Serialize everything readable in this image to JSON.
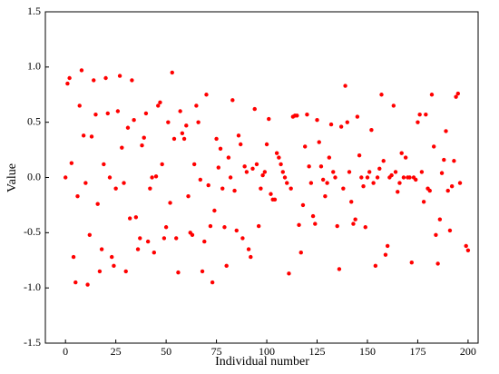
{
  "chart_data": {
    "type": "scatter",
    "x_label": "Individual number",
    "y_label": "Value",
    "color": "#ff0000",
    "xlim": [
      -10,
      205
    ],
    "ylim": [
      -1.5,
      1.5
    ],
    "xticks": [
      0,
      25,
      50,
      75,
      100,
      125,
      150,
      175,
      200
    ],
    "yticks": [
      {
        "value": -1.5,
        "label": "-1.5"
      },
      {
        "value": -1.0,
        "label": "-1.0"
      },
      {
        "value": -0.5,
        "label": "-0.5"
      },
      {
        "value": 0,
        "label": "0.0"
      },
      {
        "value": 0.5,
        "label": "0.5"
      },
      {
        "value": 1.0,
        "label": "1.0"
      },
      {
        "value": 1.5,
        "label": "1.5"
      }
    ],
    "x": [
      0,
      1,
      2,
      3,
      4,
      5,
      6,
      7,
      8,
      9,
      10,
      11,
      12,
      13,
      14,
      15,
      16,
      17,
      18,
      19,
      20,
      21,
      22,
      23,
      24,
      25,
      26,
      27,
      28,
      29,
      30,
      31,
      32,
      33,
      34,
      35,
      36,
      37,
      38,
      39,
      40,
      41,
      42,
      43,
      44,
      45,
      46,
      47,
      48,
      49,
      50,
      51,
      52,
      53,
      54,
      55,
      56,
      57,
      58,
      59,
      60,
      61,
      62,
      63,
      64,
      65,
      66,
      67,
      68,
      69,
      70,
      71,
      72,
      73,
      74,
      75,
      76,
      77,
      78,
      79,
      80,
      81,
      82,
      83,
      84,
      85,
      86,
      87,
      88,
      89,
      90,
      91,
      92,
      93,
      94,
      95,
      96,
      97,
      98,
      99,
      100,
      101,
      102,
      103,
      104,
      105,
      106,
      107,
      108,
      109,
      110,
      111,
      112,
      113,
      114,
      115,
      116,
      117,
      118,
      119,
      120,
      121,
      122,
      123,
      124,
      125,
      126,
      127,
      128,
      129,
      130,
      131,
      132,
      133,
      134,
      135,
      136,
      137,
      138,
      139,
      140,
      141,
      142,
      143,
      144,
      145,
      146,
      147,
      148,
      149,
      150,
      151,
      152,
      153,
      154,
      155,
      156,
      157,
      158,
      159,
      160,
      161,
      162,
      163,
      164,
      165,
      166,
      167,
      168,
      169,
      170,
      171,
      172,
      173,
      174,
      175,
      176,
      177,
      178,
      179,
      180,
      181,
      182,
      183,
      184,
      185,
      186,
      187,
      188,
      189,
      190,
      191,
      192,
      193,
      194,
      195,
      196,
      199,
      200
    ],
    "values": [
      0.0,
      0.85,
      0.9,
      0.13,
      -0.72,
      -0.95,
      -0.17,
      0.65,
      0.97,
      0.38,
      -0.05,
      -0.97,
      -0.52,
      0.37,
      0.88,
      0.57,
      -0.24,
      -0.85,
      -0.65,
      0.12,
      0.9,
      0.58,
      0.0,
      -0.72,
      -0.8,
      -0.1,
      0.6,
      0.92,
      0.27,
      -0.05,
      -0.85,
      0.45,
      -0.37,
      0.88,
      0.52,
      -0.36,
      -0.65,
      -0.55,
      0.29,
      0.36,
      0.58,
      -0.58,
      -0.1,
      0.0,
      -0.68,
      0.01,
      0.65,
      0.68,
      0.12,
      -0.55,
      -0.45,
      0.5,
      -0.23,
      0.95,
      0.35,
      -0.55,
      -0.86,
      0.6,
      0.4,
      0.35,
      0.47,
      -0.17,
      -0.5,
      -0.52,
      0.12,
      0.65,
      0.5,
      -0.02,
      -0.85,
      -0.58,
      0.75,
      -0.07,
      -0.44,
      -0.95,
      -0.3,
      0.35,
      0.09,
      0.26,
      -0.1,
      -0.45,
      -0.8,
      0.18,
      0.0,
      0.7,
      -0.12,
      -0.48,
      0.38,
      0.3,
      -0.55,
      0.1,
      0.05,
      -0.65,
      -0.72,
      0.08,
      0.62,
      0.12,
      -0.44,
      -0.1,
      0.02,
      0.05,
      0.3,
      0.53,
      -0.15,
      -0.2,
      -0.2,
      0.22,
      0.18,
      0.12,
      0.05,
      0.0,
      -0.05,
      -0.87,
      -0.1,
      0.55,
      0.56,
      0.56,
      -0.43,
      -0.68,
      -0.25,
      0.28,
      0.57,
      0.1,
      -0.05,
      -0.35,
      -0.42,
      0.52,
      0.32,
      0.1,
      -0.02,
      -0.17,
      -0.05,
      0.18,
      0.48,
      0.05,
      0.0,
      -0.44,
      -0.83,
      0.46,
      -0.1,
      0.83,
      0.5,
      0.05,
      -0.22,
      -0.42,
      -0.38,
      0.55,
      0.2,
      0.0,
      -0.08,
      -0.45,
      0.0,
      0.05,
      0.43,
      -0.05,
      -0.8,
      0.0,
      0.08,
      0.75,
      0.15,
      -0.7,
      -0.62,
      0.0,
      0.02,
      0.65,
      0.05,
      -0.13,
      -0.05,
      0.22,
      0.0,
      0.18,
      0.0,
      0.0,
      -0.77,
      0.0,
      -0.02,
      0.5,
      0.57,
      0.05,
      -0.22,
      0.57,
      -0.1,
      -0.12,
      0.75,
      0.28,
      -0.52,
      -0.78,
      -0.38,
      0.04,
      0.16,
      0.42,
      -0.12,
      -0.48,
      -0.08,
      0.15,
      0.73,
      0.76,
      -0.05,
      -0.62,
      -0.66
    ]
  }
}
